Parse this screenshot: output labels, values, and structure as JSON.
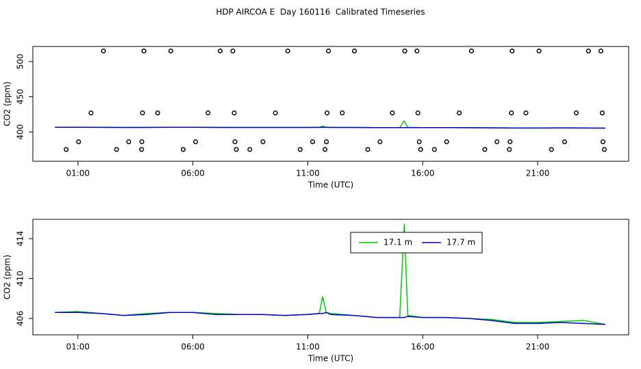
{
  "chart_data": [
    {
      "type": "line",
      "title": "HDP AIRCOA E  Day 160116  Calibrated Timeseries",
      "x_label": "Time (UTC)",
      "y_label": "CO2 (ppm)",
      "xlim": [
        -0.96,
        24.96
      ],
      "ylim": [
        358.3,
        521.4
      ],
      "xticks": [
        {
          "value": 1,
          "label": "01:00"
        },
        {
          "value": 6,
          "label": "06:00"
        },
        {
          "value": 11,
          "label": "11:00"
        },
        {
          "value": 16,
          "label": "16:00"
        },
        {
          "value": 21,
          "label": "21:00"
        }
      ],
      "yticks": [
        400,
        450,
        500
      ],
      "x": [
        0,
        1,
        2,
        3,
        4,
        5,
        6,
        7,
        8,
        9,
        10,
        11,
        11.5,
        11.65,
        11.8,
        12,
        13,
        14,
        15,
        15.05,
        15.2,
        15.35,
        16,
        17,
        18,
        19,
        20,
        21,
        22,
        23,
        23.95
      ],
      "series": [
        {
          "color": "#00cc00",
          "values": [
            406.6,
            406.7,
            406.5,
            406.3,
            406.5,
            406.6,
            406.6,
            406.5,
            406.4,
            406.4,
            406.3,
            406.4,
            406.5,
            408.2,
            406.6,
            406.5,
            406.3,
            406.1,
            406.1,
            408.5,
            415.5,
            406.3,
            406.1,
            406.1,
            406.0,
            405.9,
            405.6,
            405.6,
            405.7,
            405.8,
            405.4
          ]
        },
        {
          "color": "#0000cc",
          "values": [
            406.6,
            406.6,
            406.5,
            406.3,
            406.4,
            406.6,
            406.6,
            406.4,
            406.4,
            406.4,
            406.3,
            406.4,
            406.5,
            406.5,
            406.6,
            406.4,
            406.3,
            406.1,
            406.1,
            406.1,
            406.1,
            406.2,
            406.1,
            406.1,
            406.0,
            405.8,
            405.5,
            405.5,
            405.6,
            405.5,
            405.4
          ]
        },
        {
          "type": "scatter",
          "color": "#000000",
          "x": [
            2.11,
            3.87,
            5.04,
            7.19,
            7.74,
            10.13,
            11.9,
            13.03,
            15.22,
            15.75,
            18.12,
            19.89,
            21.06,
            23.21,
            23.75,
            1.57,
            3.81,
            4.47,
            6.66,
            7.8,
            9.59,
            11.84,
            12.5,
            14.68,
            15.79,
            17.59,
            19.86,
            20.49,
            22.68,
            23.81,
            1.03,
            3.21,
            3.78,
            6.12,
            7.83,
            9.05,
            11.21,
            11.81,
            14.14,
            15.85,
            17.04,
            19.23,
            19.8,
            22.17,
            23.84,
            0.49,
            2.68,
            3.77,
            5.58,
            7.89,
            8.48,
            10.67,
            11.75,
            13.61,
            15.91,
            16.51,
            18.7,
            19.77,
            21.6,
            23.9
          ],
          "values": [
            515,
            515,
            515,
            515,
            515,
            515,
            515,
            515,
            515,
            515,
            515,
            515,
            515,
            515,
            515,
            427,
            427,
            427,
            427,
            427,
            427,
            427,
            427,
            427,
            427,
            427,
            427,
            427,
            427,
            427,
            386,
            386,
            386,
            386,
            386,
            386,
            386,
            386,
            386,
            386,
            386,
            386,
            386,
            386,
            386,
            375,
            375,
            375,
            375,
            375,
            375,
            375,
            375,
            375,
            375,
            375,
            375,
            375,
            375,
            375
          ]
        }
      ]
    },
    {
      "type": "line",
      "x_label": "Time (UTC)",
      "y_label": "CO2 (ppm)",
      "xlim": [
        -0.96,
        24.96
      ],
      "ylim": [
        404.36,
        415.93
      ],
      "xticks": [
        {
          "value": 1,
          "label": "01:00"
        },
        {
          "value": 6,
          "label": "06:00"
        },
        {
          "value": 11,
          "label": "11:00"
        },
        {
          "value": 16,
          "label": "16:00"
        },
        {
          "value": 21,
          "label": "21:00"
        }
      ],
      "yticks": [
        406,
        410,
        414
      ],
      "legend": "top",
      "x": [
        0,
        1,
        2,
        3,
        4,
        5,
        6,
        7,
        8,
        9,
        10,
        11,
        11.5,
        11.65,
        11.8,
        12,
        13,
        14,
        15,
        15.05,
        15.2,
        15.35,
        16,
        17,
        18,
        19,
        20,
        21,
        22,
        23,
        23.95
      ],
      "series": [
        {
          "name": "17.1 m",
          "color": "#00cc00",
          "values": [
            406.6,
            406.7,
            406.5,
            406.3,
            406.5,
            406.6,
            406.6,
            406.5,
            406.4,
            406.4,
            406.3,
            406.4,
            406.5,
            408.2,
            406.6,
            406.5,
            406.3,
            406.1,
            406.1,
            408.5,
            415.5,
            406.3,
            406.1,
            406.1,
            406.0,
            405.9,
            405.6,
            405.6,
            405.7,
            405.8,
            405.4
          ]
        },
        {
          "name": "17.7 m",
          "color": "#0000cc",
          "values": [
            406.6,
            406.6,
            406.5,
            406.3,
            406.4,
            406.6,
            406.6,
            406.4,
            406.4,
            406.4,
            406.3,
            406.4,
            406.5,
            406.5,
            406.6,
            406.4,
            406.3,
            406.1,
            406.1,
            406.1,
            406.1,
            406.2,
            406.1,
            406.1,
            406.0,
            405.8,
            405.5,
            405.5,
            405.6,
            405.5,
            405.4
          ]
        }
      ]
    }
  ]
}
